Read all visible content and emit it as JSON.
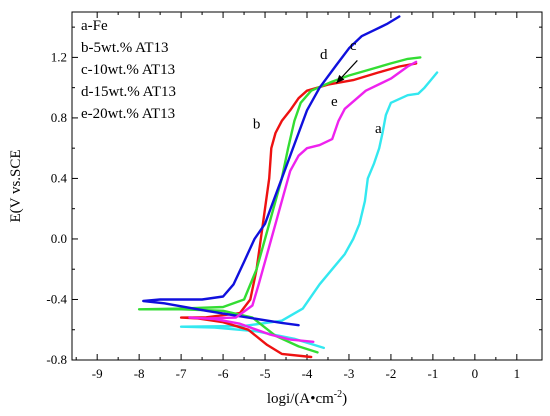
{
  "chart_data": {
    "type": "line",
    "title": "",
    "xlabel": "logi/(A•cm",
    "xlabel_sup": "-2",
    "xlabel_close": ")",
    "ylabel": "E(V vs.SCE",
    "xlim": [
      -9.6,
      1.6
    ],
    "ylim": [
      -0.8,
      1.5
    ],
    "xticks": [
      -9,
      -8,
      -7,
      -6,
      -5,
      -4,
      -3,
      -2,
      -1,
      0,
      1
    ],
    "yticks": [
      -0.8,
      -0.4,
      0.0,
      0.4,
      0.8,
      1.2
    ],
    "xtick_labels": [
      "-9",
      "-8",
      "-7",
      "-6",
      "-5",
      "-4",
      "-3",
      "-2",
      "-1",
      "0",
      "1"
    ],
    "ytick_labels": [
      "-0.8",
      "-0.4",
      "0.0",
      "0.4",
      "0.8",
      "1.2"
    ],
    "grid": false,
    "legend_position": "top-left",
    "legend": [
      "a-Fe",
      "b-5wt.% AT13",
      "c-10wt.% AT13",
      "d-15wt.% AT13",
      "e-20wt.% AT13"
    ],
    "series": [
      {
        "label": "a",
        "color": "#33e8f0",
        "points": [
          [
            -3.6,
            -0.72
          ],
          [
            -4.3,
            -0.66
          ],
          [
            -5.2,
            -0.61
          ],
          [
            -6.2,
            -0.585
          ],
          [
            -7.0,
            -0.58
          ],
          [
            -5.5,
            -0.575
          ],
          [
            -4.6,
            -0.54
          ],
          [
            -4.1,
            -0.46
          ],
          [
            -3.7,
            -0.3
          ],
          [
            -3.4,
            -0.2
          ],
          [
            -3.1,
            -0.1
          ],
          [
            -2.9,
            0.0
          ],
          [
            -2.75,
            0.1
          ],
          [
            -2.62,
            0.25
          ],
          [
            -2.55,
            0.4
          ],
          [
            -2.4,
            0.5
          ],
          [
            -2.28,
            0.6
          ],
          [
            -2.2,
            0.7
          ],
          [
            -2.12,
            0.82
          ],
          [
            -2.0,
            0.9
          ],
          [
            -1.6,
            0.95
          ],
          [
            -1.35,
            0.96
          ],
          [
            -1.2,
            1.0
          ],
          [
            -1.05,
            1.05
          ],
          [
            -0.9,
            1.1
          ]
        ]
      },
      {
        "label": "b",
        "color": "#ee1111",
        "points": [
          [
            -3.9,
            -0.78
          ],
          [
            -4.6,
            -0.76
          ],
          [
            -4.95,
            -0.7
          ],
          [
            -5.4,
            -0.6
          ],
          [
            -6.0,
            -0.55
          ],
          [
            -6.6,
            -0.525
          ],
          [
            -7.0,
            -0.52
          ],
          [
            -6.4,
            -0.518
          ],
          [
            -5.6,
            -0.49
          ],
          [
            -5.35,
            -0.4
          ],
          [
            -5.2,
            -0.2
          ],
          [
            -5.1,
            0.0
          ],
          [
            -5.0,
            0.2
          ],
          [
            -4.9,
            0.4
          ],
          [
            -4.85,
            0.6
          ],
          [
            -4.75,
            0.7
          ],
          [
            -4.6,
            0.78
          ],
          [
            -4.4,
            0.85
          ],
          [
            -4.2,
            0.93
          ],
          [
            -4.0,
            0.98
          ],
          [
            -3.5,
            1.02
          ],
          [
            -2.9,
            1.05
          ],
          [
            -2.3,
            1.1
          ],
          [
            -1.8,
            1.14
          ],
          [
            -1.4,
            1.16
          ]
        ]
      },
      {
        "label": "c",
        "color": "#33dd33",
        "points": [
          [
            -3.75,
            -0.75
          ],
          [
            -4.2,
            -0.71
          ],
          [
            -4.75,
            -0.64
          ],
          [
            -5.3,
            -0.52
          ],
          [
            -6.0,
            -0.475
          ],
          [
            -7.0,
            -0.465
          ],
          [
            -8.0,
            -0.465
          ],
          [
            -7.0,
            -0.46
          ],
          [
            -6.0,
            -0.45
          ],
          [
            -5.5,
            -0.4
          ],
          [
            -5.2,
            -0.2
          ],
          [
            -5.0,
            0.0
          ],
          [
            -4.8,
            0.2
          ],
          [
            -4.6,
            0.4
          ],
          [
            -4.45,
            0.6
          ],
          [
            -4.3,
            0.78
          ],
          [
            -4.15,
            0.9
          ],
          [
            -3.9,
            0.98
          ],
          [
            -3.4,
            1.04
          ],
          [
            -3.0,
            1.08
          ],
          [
            -2.5,
            1.12
          ],
          [
            -2.0,
            1.16
          ],
          [
            -1.6,
            1.19
          ],
          [
            -1.3,
            1.2
          ]
        ]
      },
      {
        "label": "d",
        "color": "#1010dd",
        "points": [
          [
            -4.2,
            -0.57
          ],
          [
            -4.6,
            -0.555
          ],
          [
            -5.4,
            -0.52
          ],
          [
            -6.4,
            -0.475
          ],
          [
            -7.4,
            -0.425
          ],
          [
            -7.9,
            -0.41
          ],
          [
            -7.5,
            -0.4
          ],
          [
            -6.5,
            -0.4
          ],
          [
            -6.0,
            -0.38
          ],
          [
            -5.75,
            -0.3
          ],
          [
            -5.5,
            -0.15
          ],
          [
            -5.25,
            0.0
          ],
          [
            -5.0,
            0.1
          ],
          [
            -4.8,
            0.25
          ],
          [
            -4.6,
            0.4
          ],
          [
            -4.4,
            0.55
          ],
          [
            -4.2,
            0.7
          ],
          [
            -4.0,
            0.85
          ],
          [
            -3.7,
            1.0
          ],
          [
            -3.3,
            1.15
          ],
          [
            -3.0,
            1.26
          ],
          [
            -2.7,
            1.34
          ],
          [
            -2.4,
            1.38
          ],
          [
            -2.1,
            1.42
          ],
          [
            -1.8,
            1.47
          ]
        ]
      },
      {
        "label": "e",
        "color": "#ee22ee",
        "points": [
          [
            -3.85,
            -0.68
          ],
          [
            -4.4,
            -0.665
          ],
          [
            -4.9,
            -0.63
          ],
          [
            -5.6,
            -0.56
          ],
          [
            -6.2,
            -0.53
          ],
          [
            -6.8,
            -0.52
          ],
          [
            -6.4,
            -0.525
          ],
          [
            -5.7,
            -0.52
          ],
          [
            -5.3,
            -0.44
          ],
          [
            -5.15,
            -0.3
          ],
          [
            -5.0,
            -0.15
          ],
          [
            -4.85,
            0.0
          ],
          [
            -4.7,
            0.15
          ],
          [
            -4.55,
            0.3
          ],
          [
            -4.4,
            0.45
          ],
          [
            -4.2,
            0.55
          ],
          [
            -4.0,
            0.6
          ],
          [
            -3.7,
            0.62
          ],
          [
            -3.4,
            0.66
          ],
          [
            -3.25,
            0.78
          ],
          [
            -3.1,
            0.86
          ],
          [
            -2.6,
            0.98
          ],
          [
            -2.0,
            1.06
          ],
          [
            -1.6,
            1.14
          ],
          [
            -1.4,
            1.17
          ]
        ]
      }
    ],
    "annotations": [
      {
        "text": "a",
        "x": -2.3,
        "y": 0.7
      },
      {
        "text": "b",
        "x": -5.2,
        "y": 0.73
      },
      {
        "text": "c",
        "x": -2.9,
        "y": 1.25
      },
      {
        "text": "d",
        "x": -3.6,
        "y": 1.19
      },
      {
        "text": "e",
        "x": -3.35,
        "y": 0.88
      }
    ],
    "arrow": {
      "from": [
        -2.8,
        1.18
      ],
      "to": [
        -3.3,
        1.03
      ],
      "color": "#000000"
    }
  }
}
